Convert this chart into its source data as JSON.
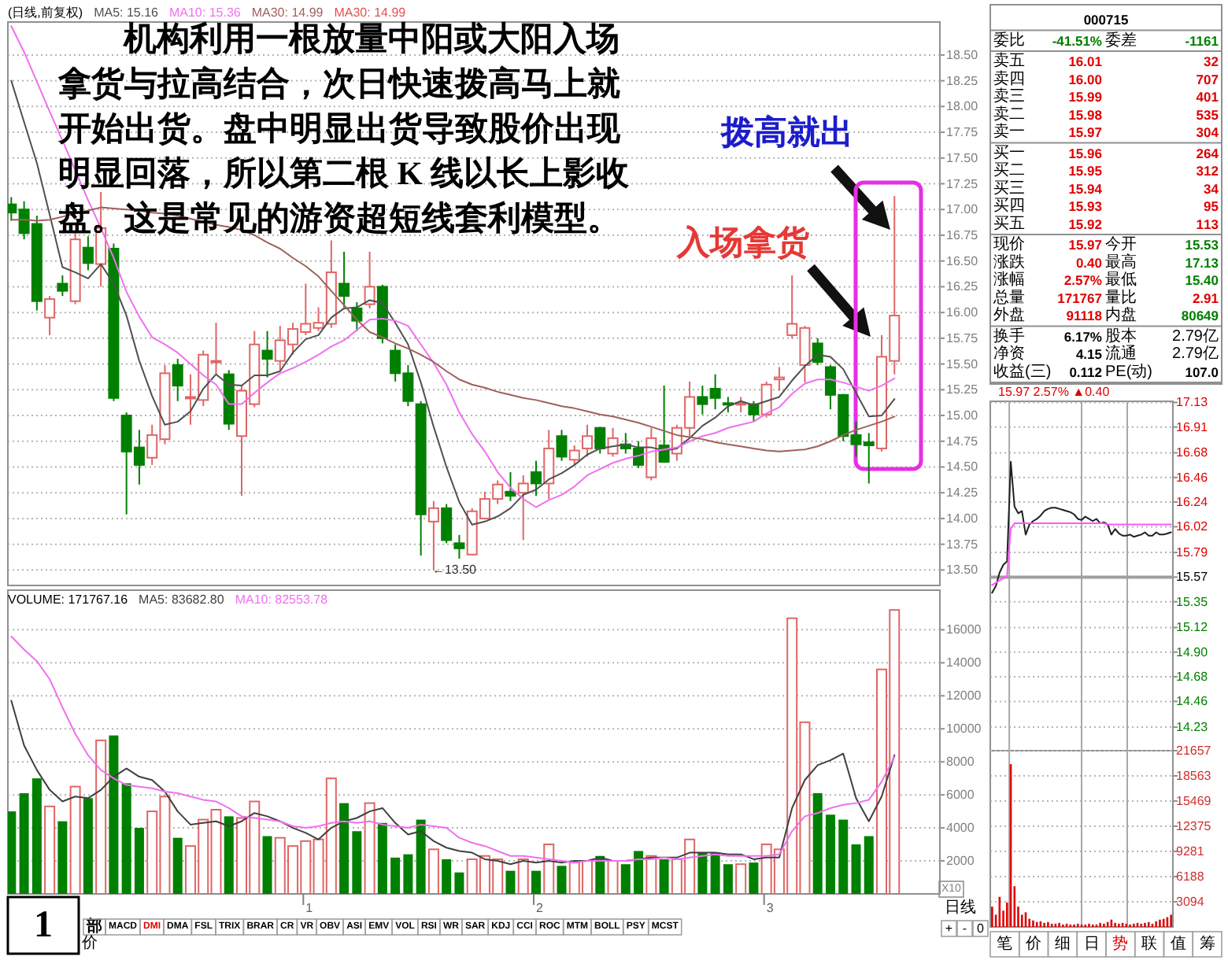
{
  "chart_data": [
    {
      "type": "candlestick",
      "title": "(日线,前复权)",
      "legend": "top left",
      "grid": "y",
      "tick_labels": "y",
      "categories": [
        null,
        null,
        null,
        null,
        null,
        null,
        null,
        null,
        null,
        null,
        null,
        null,
        null,
        null,
        null,
        null,
        null,
        null,
        null,
        null,
        null,
        null,
        null,
        null,
        null,
        null,
        null,
        null,
        null,
        null,
        null,
        null,
        null,
        null,
        null,
        null,
        null,
        null,
        null,
        null,
        null,
        null,
        null,
        null,
        null,
        null,
        null,
        null,
        null,
        null,
        null,
        null,
        null,
        null,
        null,
        null,
        null,
        null,
        null,
        null,
        null,
        null,
        null,
        null,
        null,
        null,
        null,
        null,
        null,
        null
      ],
      "ohlc": [
        [
          17.05,
          17.12,
          16.89,
          16.97
        ],
        [
          17.0,
          17.08,
          16.71,
          16.77
        ],
        [
          16.86,
          16.94,
          16.02,
          16.11
        ],
        [
          15.95,
          16.16,
          15.78,
          16.13
        ],
        [
          16.28,
          16.36,
          16.16,
          16.21
        ],
        [
          16.11,
          16.77,
          16.08,
          16.71
        ],
        [
          16.63,
          16.74,
          16.41,
          16.48
        ],
        [
          16.47,
          17.17,
          16.25,
          16.82
        ],
        [
          16.62,
          16.67,
          15.14,
          15.17
        ],
        [
          15.0,
          15.03,
          14.04,
          14.65
        ],
        [
          14.69,
          14.86,
          14.33,
          14.52
        ],
        [
          14.59,
          14.91,
          14.52,
          14.81
        ],
        [
          14.77,
          15.49,
          14.72,
          15.41
        ],
        [
          15.49,
          15.55,
          15.14,
          15.29
        ],
        [
          15.17,
          15.4,
          14.91,
          15.18
        ],
        [
          15.15,
          15.63,
          15.09,
          15.59
        ],
        [
          15.52,
          15.9,
          15.4,
          15.53
        ],
        [
          15.4,
          15.44,
          14.86,
          14.92
        ],
        [
          14.8,
          15.29,
          14.22,
          15.24
        ],
        [
          15.11,
          15.82,
          15.08,
          15.69
        ],
        [
          15.63,
          15.82,
          15.37,
          15.55
        ],
        [
          15.53,
          15.87,
          15.44,
          15.73
        ],
        [
          15.69,
          15.9,
          15.59,
          15.84
        ],
        [
          15.81,
          16.28,
          15.78,
          15.89
        ],
        [
          15.85,
          16.05,
          15.82,
          15.9
        ],
        [
          15.89,
          16.7,
          15.85,
          16.39
        ],
        [
          16.28,
          16.59,
          16.05,
          16.16
        ],
        [
          16.04,
          16.1,
          15.82,
          15.92
        ],
        [
          16.08,
          16.59,
          16.04,
          16.25
        ],
        [
          16.25,
          16.27,
          15.7,
          15.75
        ],
        [
          15.63,
          15.69,
          15.33,
          15.41
        ],
        [
          15.41,
          15.49,
          15.09,
          15.14
        ],
        [
          15.11,
          15.14,
          13.64,
          14.04
        ],
        [
          13.97,
          14.17,
          13.5,
          14.1
        ],
        [
          14.1,
          14.14,
          13.76,
          13.79
        ],
        [
          13.76,
          13.84,
          13.61,
          13.71
        ],
        [
          13.65,
          14.1,
          13.64,
          14.07
        ],
        [
          14.0,
          14.26,
          13.99,
          14.19
        ],
        [
          14.19,
          14.37,
          14.14,
          14.33
        ],
        [
          14.26,
          14.45,
          14.17,
          14.22
        ],
        [
          14.25,
          14.42,
          13.79,
          14.34
        ],
        [
          14.45,
          14.56,
          14.22,
          14.34
        ],
        [
          14.34,
          14.86,
          14.19,
          14.68
        ],
        [
          14.8,
          14.86,
          14.56,
          14.6
        ],
        [
          14.57,
          14.71,
          14.52,
          14.66
        ],
        [
          14.68,
          14.91,
          14.6,
          14.8
        ],
        [
          14.88,
          14.89,
          14.63,
          14.68
        ],
        [
          14.63,
          14.88,
          14.6,
          14.78
        ],
        [
          14.72,
          14.83,
          14.63,
          14.68
        ],
        [
          14.68,
          14.75,
          14.49,
          14.52
        ],
        [
          14.4,
          14.88,
          14.37,
          14.78
        ],
        [
          14.71,
          15.29,
          14.54,
          14.55
        ],
        [
          14.63,
          14.91,
          14.56,
          14.88
        ],
        [
          14.88,
          15.33,
          14.8,
          15.18
        ],
        [
          15.18,
          15.29,
          15.01,
          15.11
        ],
        [
          15.26,
          15.4,
          15.06,
          15.17
        ],
        [
          15.12,
          15.18,
          15.03,
          15.11
        ],
        [
          15.11,
          15.18,
          15.03,
          15.12
        ],
        [
          15.11,
          15.14,
          14.94,
          15.01
        ],
        [
          15.01,
          15.33,
          14.98,
          15.3
        ],
        [
          15.35,
          15.47,
          15.24,
          15.37
        ],
        [
          15.78,
          16.36,
          15.75,
          15.89
        ],
        [
          15.49,
          15.87,
          15.32,
          15.85
        ],
        [
          15.7,
          15.75,
          15.49,
          15.52
        ],
        [
          15.47,
          15.49,
          15.06,
          15.2
        ],
        [
          15.2,
          15.21,
          14.75,
          14.8
        ],
        [
          14.81,
          14.94,
          14.6,
          14.72
        ],
        [
          14.74,
          14.83,
          14.34,
          14.71
        ],
        [
          14.68,
          15.78,
          14.65,
          15.57
        ],
        [
          15.53,
          17.13,
          15.4,
          15.97
        ]
      ],
      "colors": [
        "#008000",
        "#008000",
        "#008000",
        "#e06666",
        "#008000",
        "#e06666",
        "#008000",
        "#e06666",
        "#008000",
        "#008000",
        "#008000",
        "#e06666",
        "#e06666",
        "#008000",
        "#e06666",
        "#e06666",
        "#e06666",
        "#008000",
        "#e06666",
        "#e06666",
        "#008000",
        "#e06666",
        "#e06666",
        "#e06666",
        "#e06666",
        "#e06666",
        "#008000",
        "#008000",
        "#e06666",
        "#008000",
        "#008000",
        "#008000",
        "#008000",
        "#e06666",
        "#008000",
        "#008000",
        "#e06666",
        "#e06666",
        "#e06666",
        "#008000",
        "#e06666",
        "#008000",
        "#e06666",
        "#008000",
        "#e06666",
        "#e06666",
        "#008000",
        "#e06666",
        "#008000",
        "#008000",
        "#e06666",
        "#008000",
        "#e06666",
        "#e06666",
        "#008000",
        "#008000",
        "#008000",
        "#e06666",
        "#008000",
        "#e06666",
        "#e06666",
        "#e06666",
        "#e06666",
        "#008000",
        "#008000",
        "#008000",
        "#008000",
        "#008000",
        "#e06666",
        "#e06666"
      ],
      "series": [
        {
          "name": "MA5: 15.16",
          "type": "line",
          "color": "#505050",
          "values": [
            18.25,
            17.85,
            17.45,
            16.95,
            16.44,
            16.39,
            16.33,
            16.47,
            16.28,
            15.97,
            15.53,
            15.19,
            14.91,
            14.94,
            15.04,
            15.26,
            15.4,
            15.3,
            15.29,
            15.39,
            15.39,
            15.43,
            15.61,
            15.74,
            15.78,
            15.95,
            16.04,
            16.05,
            16.12,
            16.09,
            15.9,
            15.69,
            15.32,
            14.89,
            14.5,
            14.16,
            13.94,
            13.97,
            14.02,
            14.1,
            14.23,
            14.28,
            14.38,
            14.44,
            14.52,
            14.62,
            14.68,
            14.7,
            14.72,
            14.69,
            14.69,
            14.66,
            14.68,
            14.78,
            14.9,
            14.98,
            15.09,
            15.14,
            15.1,
            15.14,
            15.18,
            15.34,
            15.48,
            15.59,
            15.57,
            15.45,
            15.22,
            14.99,
            15.0,
            15.16
          ]
        },
        {
          "name": "MA10: 15.36",
          "type": "line",
          "color": "#f070f0",
          "values": [
            18.78,
            18.53,
            18.24,
            17.95,
            17.67,
            17.38,
            17.09,
            16.82,
            16.53,
            16.2,
            15.96,
            15.76,
            15.69,
            15.61,
            15.5,
            15.39,
            15.3,
            15.11,
            15.11,
            15.22,
            15.32,
            15.41,
            15.46,
            15.52,
            15.59,
            15.67,
            15.73,
            15.83,
            15.93,
            15.94,
            15.92,
            15.87,
            15.69,
            15.51,
            15.3,
            15.03,
            14.82,
            14.65,
            14.45,
            14.3,
            14.19,
            14.11,
            14.18,
            14.23,
            14.31,
            14.42,
            14.48,
            14.54,
            14.58,
            14.61,
            14.65,
            14.67,
            14.69,
            14.75,
            14.8,
            14.83,
            14.88,
            14.91,
            14.94,
            15.02,
            15.08,
            15.21,
            15.31,
            15.35,
            15.35,
            15.32,
            15.28,
            15.24,
            15.29,
            15.36
          ]
        },
        {
          "name": "MA30: 14.99",
          "type": "line",
          "color": "#a0605a",
          "values": [
            16.9,
            16.9,
            16.89,
            16.9,
            16.93,
            16.96,
            16.99,
            17.02,
            17.01,
            17.0,
            16.99,
            16.97,
            16.96,
            16.94,
            16.91,
            16.88,
            16.85,
            16.83,
            16.8,
            16.75,
            16.68,
            16.62,
            16.53,
            16.45,
            16.35,
            16.21,
            16.07,
            15.93,
            15.81,
            15.76,
            15.7,
            15.65,
            15.59,
            15.52,
            15.43,
            15.35,
            15.3,
            15.27,
            15.23,
            15.2,
            15.17,
            15.15,
            15.12,
            15.09,
            15.07,
            15.04,
            15.01,
            14.99,
            14.96,
            14.93,
            14.89,
            14.85,
            14.81,
            14.79,
            14.77,
            14.74,
            14.72,
            14.7,
            14.68,
            14.66,
            14.65,
            14.66,
            14.67,
            14.7,
            14.75,
            14.81,
            14.86,
            14.9,
            14.94,
            14.99
          ]
        }
      ],
      "ylim": [
        13.35,
        18.82
      ],
      "yticks": [
        {
          "value": 13.5,
          "label": "13.50"
        },
        13.75,
        {
          "value": 14,
          "label": "14.00"
        },
        14.25,
        {
          "value": 14.5,
          "label": "14.50"
        },
        14.75,
        {
          "value": 15,
          "label": "15.00"
        },
        15.25,
        {
          "value": 15.5,
          "label": "15.50"
        },
        15.75,
        {
          "value": 16,
          "label": "16.00"
        },
        16.25,
        {
          "value": 16.5,
          "label": "16.50"
        },
        16.75,
        {
          "value": 17,
          "label": "17.00"
        },
        17.25,
        {
          "value": 17.5,
          "label": "17.50"
        },
        17.75,
        {
          "value": 18,
          "label": "18.00"
        },
        18.25,
        {
          "value": 18.5,
          "label": "18.50"
        }
      ],
      "annotations": [
        "机构利用一根放量中阳或大阳入场拿货与拉高结合，次日快速拨高马上就开始出货。盘中明显出货导致股价出现明显回落，所以第二根 K 线以长上影收盘。这是常见的游资超短线套利模型。",
        "拨高就出",
        "入场拿货",
        "MA30: 14.99",
        "←13.50"
      ]
    },
    {
      "type": "other",
      "cell_labels": [
        [
          [
            "000715"
          ]
        ],
        [
          [
            "委比",
            "-41.51%",
            "委差",
            "-1161"
          ]
        ],
        [
          [
            "卖五",
            "16.01",
            "32"
          ],
          [
            "卖四",
            "16.00",
            "707"
          ],
          [
            "卖三",
            "15.99",
            "401"
          ],
          [
            "卖二",
            "15.98",
            "535"
          ],
          [
            "卖一",
            "15.97",
            "304"
          ]
        ],
        [
          [
            "买一",
            "15.96",
            "264"
          ],
          [
            "买二",
            "15.95",
            "312"
          ],
          [
            "买三",
            "15.94",
            "34"
          ],
          [
            "买四",
            "15.93",
            "95"
          ],
          [
            "买五",
            "15.92",
            "113"
          ]
        ],
        [
          [
            "现价",
            "15.97",
            "今开",
            "15.53"
          ],
          [
            "涨跌",
            "0.40",
            "最高",
            "17.13"
          ],
          [
            "涨幅",
            "2.57%",
            "最低",
            "15.40"
          ],
          [
            "总量",
            "171767",
            "量比",
            "2.91"
          ],
          [
            "外盘",
            "91118",
            "内盘",
            "80649"
          ]
        ],
        [
          [
            "换手",
            "6.17%",
            "股本",
            "2.79亿"
          ],
          [
            "净资",
            "4.15",
            "流通",
            "2.79亿"
          ],
          [
            "收益(三)",
            "0.112",
            "PE(动)",
            "107.0"
          ]
        ]
      ],
      "colors": [
        [
          [
            "#000000"
          ]
        ],
        [
          [
            "#000000",
            "#008000",
            "#000000",
            "#008000"
          ]
        ],
        [
          [
            "#000000",
            "#e00000"
          ],
          [
            "#000000",
            "#e00000"
          ],
          [
            "#000000",
            "#e00000"
          ],
          [
            "#000000",
            "#e00000"
          ],
          [
            "#000000",
            "#e00000"
          ]
        ],
        [
          [
            "#000000",
            "#e00000"
          ],
          [
            "#000000",
            "#e00000"
          ],
          [
            "#000000",
            "#e00000"
          ],
          [
            "#000000",
            "#e00000"
          ],
          [
            "#000000",
            "#e00000"
          ]
        ],
        [
          [
            "#000000",
            "#e00000",
            "#000000",
            "#008000"
          ],
          [
            "#000000",
            "#e00000",
            "#000000",
            "#008000"
          ],
          [
            "#000000",
            "#e00000",
            "#000000",
            "#008000"
          ],
          [
            "#000000",
            "#e00000",
            "#000000",
            "#e00000"
          ],
          [
            "#000000",
            "#e00000",
            "#000000",
            "#008000"
          ]
        ],
        [
          [
            "#000000",
            "#000000",
            "#000000",
            "#000000"
          ],
          [
            "#000000",
            "#000000",
            "#000000",
            "#000000"
          ],
          [
            "#000000",
            "#000000",
            "#000000",
            "#000000"
          ]
        ]
      ]
    },
    {
      "type": "line",
      "title": "15.97 2.57% ▲0.40",
      "grid": true,
      "tick_labels": "y",
      "categories": [
        null,
        null,
        null,
        null,
        null,
        null,
        null,
        null,
        null,
        null,
        null,
        null,
        null,
        null,
        null,
        null,
        null,
        null,
        null,
        null,
        null,
        null,
        null,
        null,
        null,
        null,
        null,
        null,
        null,
        null,
        null,
        null,
        null,
        null,
        null,
        null,
        null,
        null,
        null,
        null,
        null,
        null,
        null,
        null,
        null,
        null,
        null,
        null,
        null
      ],
      "ylim": [
        14.02,
        17.14
      ],
      "yticks": [
        14.23,
        14.46,
        14.68,
        {
          "value": 14.9,
          "label": "14.90"
        },
        15.12,
        15.35,
        15.57,
        15.79,
        16.02,
        16.24,
        16.46,
        16.68,
        16.91,
        17.13
      ],
      "ref_lines": [
        {
          "axis": "y",
          "value": 15.57,
          "color": "#a0a0a0"
        }
      ],
      "series": [
        {
          "color": "#202020",
          "values": [
            15.43,
            15.49,
            15.61,
            15.68,
            15.71,
            16.6,
            16.2,
            16.14,
            16.16,
            15.95,
            16.04,
            16.07,
            16.09,
            16.12,
            16.16,
            16.18,
            16.19,
            16.19,
            16.18,
            16.17,
            16.16,
            16.15,
            16.13,
            16.09,
            16.08,
            16.11,
            16.09,
            16.07,
            16.09,
            16.05,
            16.06,
            16.04,
            15.95,
            16.0,
            15.96,
            15.94,
            15.94,
            15.95,
            15.93,
            15.94,
            15.95,
            15.97,
            15.94,
            15.94,
            15.97,
            15.95,
            15.95,
            15.96,
            15.97
          ]
        },
        {
          "color": "#ff55ff",
          "values": [
            15.5,
            15.52,
            15.54,
            15.56,
            15.58,
            16.0,
            16.05,
            16.05,
            16.05,
            16.05,
            16.05,
            16.05,
            16.05,
            16.05,
            16.05,
            16.05,
            16.05,
            16.05,
            16.05,
            16.05,
            16.05,
            16.05,
            16.05,
            16.05,
            16.05,
            16.05,
            16.05,
            16.05,
            16.05,
            16.05,
            16.05,
            16.04,
            16.04,
            16.04,
            16.04,
            16.04,
            16.04,
            16.04,
            16.04,
            16.04,
            16.04,
            16.04,
            16.04,
            16.04,
            16.04,
            16.04,
            16.04,
            16.04,
            16.04
          ]
        }
      ]
    },
    {
      "type": "bar",
      "title": "VOLUME: 171767.16",
      "legend": "top left",
      "grid": "y",
      "categories": [
        null,
        null,
        null,
        null,
        null,
        null,
        null,
        null,
        null,
        null,
        null,
        null,
        null,
        null,
        null,
        null,
        null,
        null,
        null,
        null,
        null,
        null,
        null,
        "1",
        null,
        null,
        null,
        null,
        null,
        null,
        null,
        null,
        null,
        null,
        null,
        null,
        null,
        null,
        null,
        null,
        null,
        "2",
        null,
        null,
        null,
        null,
        null,
        null,
        null,
        null,
        null,
        null,
        null,
        null,
        null,
        null,
        null,
        null,
        null,
        "3",
        null,
        null,
        null,
        null,
        null,
        null,
        null,
        null,
        null,
        null
      ],
      "series": [
        {
          "type": "bar",
          "colors": [
            "#008000",
            "#008000",
            "#008000",
            "#e06666",
            "#008000",
            "#e06666",
            "#008000",
            "#e06666",
            "#008000",
            "#008000",
            "#008000",
            "#e06666",
            "#e06666",
            "#008000",
            "#e06666",
            "#e06666",
            "#e06666",
            "#008000",
            "#e06666",
            "#e06666",
            "#008000",
            "#e06666",
            "#e06666",
            "#e06666",
            "#e06666",
            "#e06666",
            "#008000",
            "#008000",
            "#e06666",
            "#008000",
            "#008000",
            "#008000",
            "#008000",
            "#e06666",
            "#008000",
            "#008000",
            "#e06666",
            "#e06666",
            "#e06666",
            "#008000",
            "#e06666",
            "#008000",
            "#e06666",
            "#008000",
            "#e06666",
            "#e06666",
            "#008000",
            "#e06666",
            "#008000",
            "#008000",
            "#e06666",
            "#008000",
            "#e06666",
            "#e06666",
            "#008000",
            "#008000",
            "#008000",
            "#e06666",
            "#008000",
            "#e06666",
            "#e06666",
            "#e06666",
            "#e06666",
            "#008000",
            "#008000",
            "#008000",
            "#008000",
            "#008000",
            "#e06666",
            "#e06666"
          ],
          "values": [
            5000,
            6100,
            7000,
            5300,
            4400,
            6500,
            5800,
            9300,
            9600,
            6700,
            4000,
            5000,
            5900,
            3400,
            2900,
            4500,
            5100,
            4700,
            4600,
            5600,
            3500,
            3400,
            2900,
            3200,
            3300,
            7000,
            5500,
            3800,
            5500,
            4300,
            2200,
            2400,
            4500,
            2700,
            2100,
            1300,
            2100,
            2300,
            2100,
            1400,
            2100,
            1400,
            3000,
            1700,
            1900,
            2000,
            2300,
            2000,
            1800,
            2600,
            2300,
            2100,
            2100,
            3300,
            2500,
            2500,
            1800,
            1800,
            1900,
            3000,
            2700,
            16700,
            10400,
            6100,
            4800,
            4500,
            3000,
            3500,
            13600,
            17200
          ]
        },
        {
          "name": "MA5: 83682.80",
          "type": "line",
          "color": "#404040",
          "values": [
            11700,
            9000,
            7500,
            6300,
            5600,
            5900,
            5800,
            6300,
            7100,
            7600,
            7100,
            6900,
            6200,
            5000,
            4200,
            4300,
            4400,
            4100,
            4400,
            4900,
            4700,
            4400,
            4000,
            3700,
            3300,
            4000,
            4400,
            4600,
            5000,
            5200,
            4300,
            3600,
            3800,
            3200,
            2800,
            2600,
            2500,
            2100,
            2000,
            1800,
            2000,
            1900,
            2000,
            1900,
            2000,
            2000,
            2200,
            2000,
            2000,
            2100,
            2200,
            2200,
            2200,
            2500,
            2500,
            2500,
            2400,
            2400,
            2100,
            2200,
            2200,
            5200,
            6900,
            7800,
            8100,
            8500,
            5800,
            4400,
            5900,
            8400
          ]
        },
        {
          "name": "MA10: 82553.78",
          "type": "line",
          "color": "#f070f0",
          "values": [
            15600,
            14800,
            14100,
            13000,
            11300,
            9700,
            8400,
            7500,
            7000,
            6600,
            6500,
            6400,
            6200,
            6100,
            5900,
            5700,
            5600,
            5200,
            4700,
            4600,
            4500,
            4400,
            4100,
            4000,
            4100,
            4300,
            4400,
            4300,
            4400,
            4200,
            4100,
            4000,
            4200,
            4100,
            4000,
            3400,
            3100,
            2900,
            2600,
            2300,
            2300,
            2200,
            2100,
            2000,
            1900,
            2000,
            2000,
            2000,
            2000,
            2100,
            2100,
            2200,
            2100,
            2200,
            2300,
            2400,
            2300,
            2300,
            2300,
            2300,
            2400,
            3800,
            4700,
            4900,
            5200,
            5400,
            5500,
            5700,
            6800,
            8300
          ]
        }
      ],
      "ylim": [
        0,
        18400
      ],
      "yticks": [
        2000,
        4000,
        6000,
        8000,
        10000,
        12000,
        14000,
        16000
      ],
      "annotations": [
        "X10"
      ]
    },
    {
      "type": "bar",
      "grid": true,
      "tick_labels": "y",
      "color": "#e00000",
      "categories": [
        null,
        null,
        null,
        null,
        null,
        null,
        null,
        null,
        null,
        null,
        null,
        null,
        null,
        null,
        null,
        null,
        null,
        null,
        null,
        null,
        null,
        null,
        null,
        null,
        null,
        null,
        null,
        null,
        null,
        null,
        null,
        null,
        null,
        null,
        null,
        null,
        null,
        null,
        null,
        null,
        null,
        null,
        null,
        null,
        null,
        null,
        null,
        null,
        null
      ],
      "values": [
        2500,
        1500,
        3700,
        2000,
        3000,
        20000,
        5000,
        2500,
        1500,
        1800,
        1000,
        800,
        600,
        700,
        500,
        600,
        400,
        400,
        500,
        300,
        400,
        300,
        300,
        400,
        300,
        300,
        400,
        300,
        300,
        500,
        400,
        600,
        900,
        500,
        400,
        500,
        400,
        300,
        400,
        500,
        400,
        500,
        600,
        400,
        700,
        900,
        1000,
        1200,
        1500
      ],
      "ylim": [
        0,
        21657
      ],
      "yticks": [
        3094,
        6188,
        9281,
        12375,
        15469,
        18563,
        21657
      ]
    },
    {
      "type": "other",
      "annotations": [
        "1",
        "部",
        "MACD",
        "DMI",
        "DMA",
        "FSL",
        "TRIX",
        "BRAR",
        "CR",
        "VR",
        "OBV",
        "ASI",
        "EMV",
        "VOL",
        "RSI",
        "WR",
        "SAR",
        "KDJ",
        "CCI",
        "ROC",
        "MTM",
        "BOLL",
        "PSY",
        "MCST",
        "价",
        "日线",
        "+",
        "-",
        "0"
      ]
    },
    {
      "type": "other",
      "annotations": [
        "笔",
        "价",
        "细",
        "日",
        "势",
        "联",
        "值",
        "筹"
      ]
    }
  ]
}
